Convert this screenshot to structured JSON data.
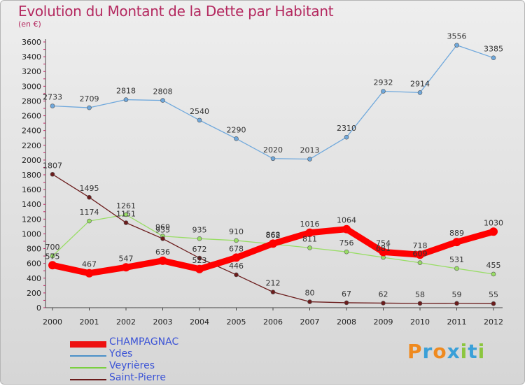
{
  "chart_data": {
    "type": "line",
    "title": "Evolution du Montant de la Dette par Habitant",
    "subtitle": "(en €)",
    "categories": [
      "2000",
      "2001",
      "2002",
      "2003",
      "2004",
      "2005",
      "2006",
      "2007",
      "2008",
      "2009",
      "2010",
      "2011",
      "2012"
    ],
    "ylim": [
      0,
      3600
    ],
    "yticks": [
      0,
      200,
      400,
      600,
      800,
      1000,
      1200,
      1400,
      1600,
      1800,
      2000,
      2200,
      2400,
      2600,
      2800,
      3000,
      3200,
      3400,
      3600
    ],
    "grid": false,
    "legend_position": "bottom-left",
    "series": [
      {
        "name": "CHAMPAGNAC",
        "color": "#ff0000",
        "values": [
          575,
          467,
          547,
          636,
          523,
          678,
          868,
          1016,
          1064,
          754,
          718,
          889,
          1030
        ]
      },
      {
        "name": "Ydes",
        "color": "#6fa8dc",
        "values": [
          2733,
          2709,
          2818,
          2808,
          2540,
          2290,
          2020,
          2013,
          2310,
          2932,
          2914,
          3556,
          3385
        ]
      },
      {
        "name": "Veyrières",
        "color": "#99dd66",
        "values": [
          700,
          1174,
          1261,
          969,
          935,
          910,
          862,
          811,
          756,
          681,
          609,
          531,
          455
        ]
      },
      {
        "name": "Saint-Pierre",
        "color": "#6b1c1c",
        "values": [
          1807,
          1495,
          1151,
          935,
          672,
          446,
          212,
          80,
          67,
          62,
          58,
          59,
          55
        ]
      }
    ],
    "data_labels": {
      "CHAMPAGNAC": [
        "575",
        "467",
        "547",
        "636",
        "523",
        "678",
        "868",
        "1016",
        "1064",
        "754",
        "718",
        "889",
        "1030"
      ],
      "Ydes": [
        "2733",
        "2709",
        "2818",
        "2808",
        "2540",
        "2290",
        "2020",
        "2013",
        "2310",
        "2932",
        "2914",
        "3556",
        "3385"
      ],
      "Veyrières": [
        "700",
        "1174",
        "1261",
        "969",
        "935",
        "910",
        "862",
        "811",
        "756",
        "681",
        "609",
        "531",
        "455"
      ],
      "Saint-Pierre": [
        "1807",
        "1495",
        "1151",
        "935",
        "672",
        "446",
        "212",
        "80",
        "67",
        "62",
        "58",
        "59",
        "55"
      ]
    }
  },
  "logo": {
    "letters": [
      "P",
      "r",
      "o",
      "x",
      "i",
      "t",
      "i"
    ],
    "colors": [
      "#ef8a1f",
      "#3aa0d8",
      "#ef8a1f",
      "#3aa0d8",
      "#8cc63f",
      "#3aa0d8",
      "#8cc63f"
    ]
  }
}
